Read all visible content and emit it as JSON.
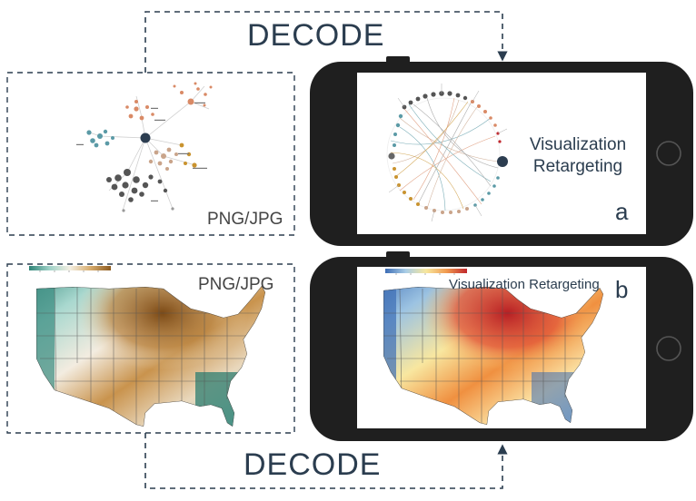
{
  "arrows": {
    "top_label": "DECODE",
    "bottom_label": "DECODE"
  },
  "top_row": {
    "source_format": "PNG/JPG",
    "source_chart": "network graph",
    "target_title": "Visualization Retargeting",
    "target_title_line1": "Visualization",
    "target_title_line2": "Retargeting",
    "target_chart": "radial graph",
    "panel_letter": "a"
  },
  "bottom_row": {
    "source_format": "PNG/JPG",
    "source_chart": "US choropleth map (brown-teal)",
    "target_title": "Visualization Retargeting",
    "target_chart": "US choropleth map (red-blue)",
    "panel_letter": "b"
  },
  "colors": {
    "dark_navy": "#2b3d4f",
    "phone_body": "#1f1f1f",
    "brown": "#8c5a1f",
    "teal": "#3a8c80",
    "red": "#c0272d",
    "blue": "#3d6db5",
    "yellow": "#f7e79e"
  }
}
